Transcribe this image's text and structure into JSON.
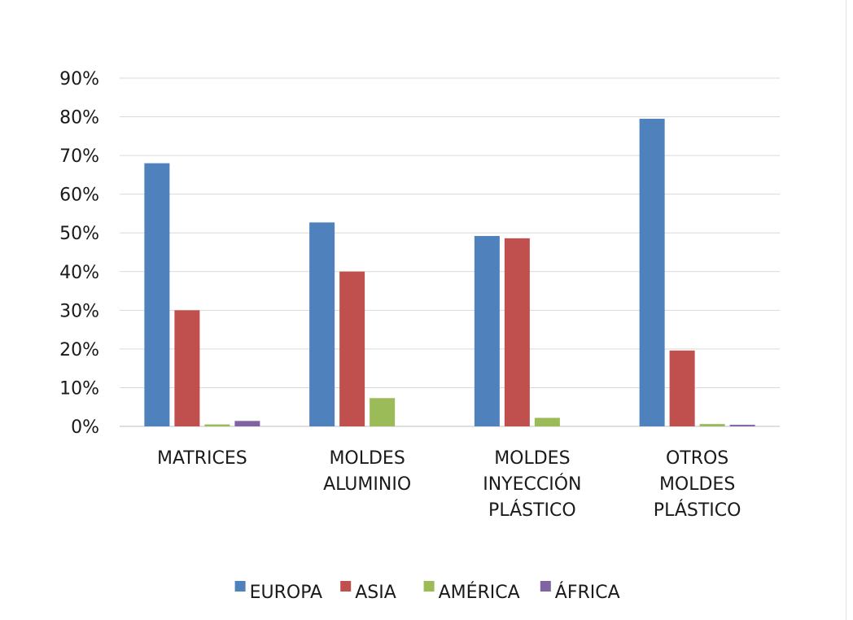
{
  "chart_data": {
    "type": "bar",
    "categories": [
      [
        "MATRICES"
      ],
      [
        "MOLDES",
        "ALUMINIO"
      ],
      [
        "MOLDES",
        "INYECCIÓN",
        "PLÁSTICO"
      ],
      [
        "OTROS",
        "MOLDES",
        "PLÁSTICO"
      ]
    ],
    "series": [
      {
        "name": "EUROPA",
        "color": "#4f81bd",
        "values": [
          68.0,
          52.7,
          49.2,
          79.5
        ]
      },
      {
        "name": "ASIA",
        "color": "#c0504d",
        "values": [
          30.0,
          40.0,
          48.6,
          19.6
        ]
      },
      {
        "name": "AMÉRICA",
        "color": "#9bbb59",
        "values": [
          0.5,
          7.3,
          2.2,
          0.6
        ]
      },
      {
        "name": "ÁFRICA",
        "color": "#8064a2",
        "values": [
          1.4,
          0.0,
          0.0,
          0.4
        ]
      }
    ],
    "ylim": [
      0,
      90
    ],
    "yticks": [
      "0%",
      "10%",
      "20%",
      "30%",
      "40%",
      "50%",
      "60%",
      "70%",
      "80%",
      "90%"
    ],
    "grid": true,
    "legend_position": "bottom"
  }
}
